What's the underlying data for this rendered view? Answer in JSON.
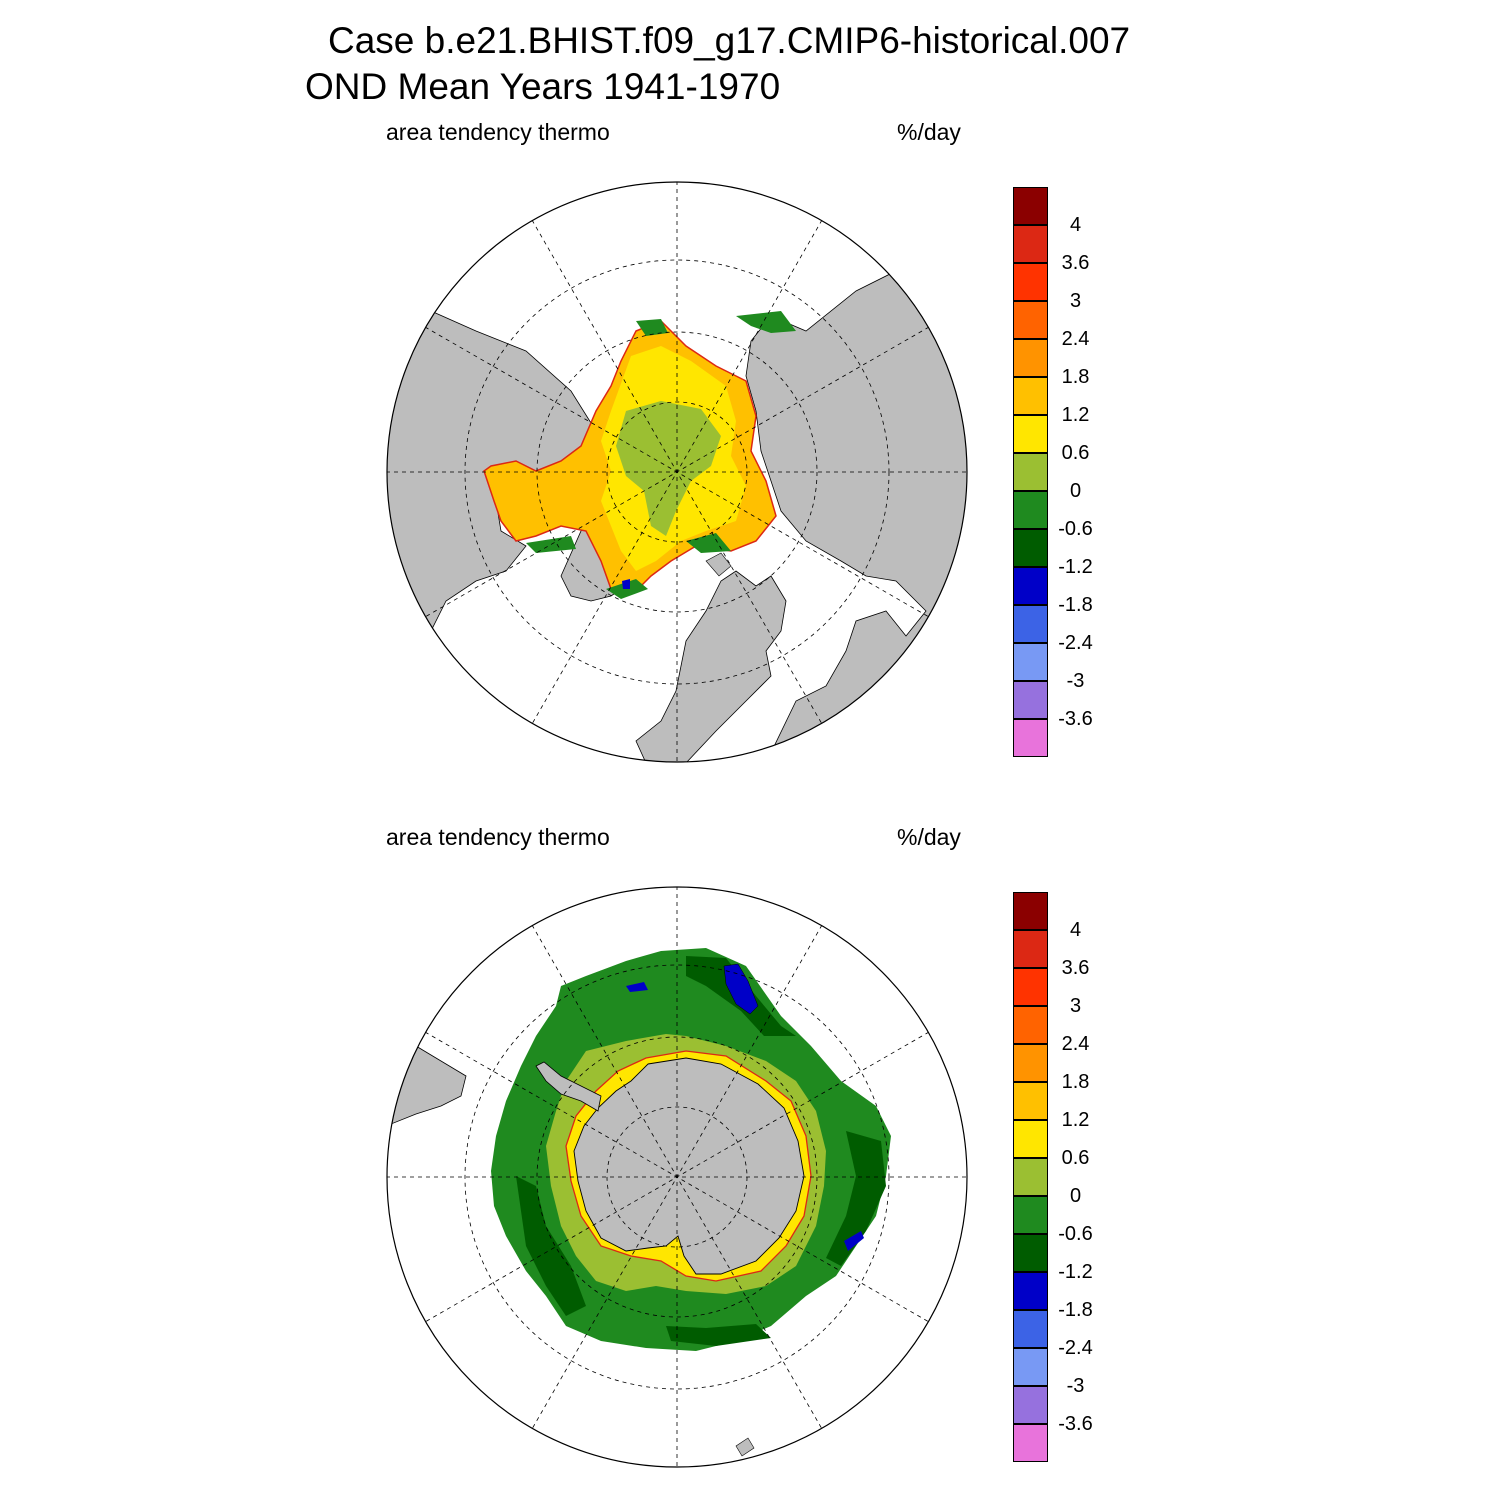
{
  "title": {
    "line1": "Case b.e21.BHIST.f09_g17.CMIP6-historical.007",
    "line2": "OND Mean   Years 1941-1970"
  },
  "panels": [
    {
      "hemisphere": "north",
      "field_label": "area tendency thermo",
      "units": "%/day"
    },
    {
      "hemisphere": "south",
      "field_label": "area tendency thermo",
      "units": "%/day"
    }
  ],
  "colorbar": {
    "colors": [
      "#e873db",
      "#9671de",
      "#7899f4",
      "#3c63e6",
      "#0000c8",
      "#005c00",
      "#1f8a1f",
      "#9bbf32",
      "#ffe600",
      "#ffc000",
      "#ff9300",
      "#ff6300",
      "#ff3300",
      "#dc2814",
      "#8b0000"
    ],
    "tick_labels": [
      "-3.6",
      "-3",
      "-2.4",
      "-1.8",
      "-1.2",
      "-0.6",
      "0",
      "0.6",
      "1.2",
      "1.8",
      "2.4",
      "3",
      "3.6",
      "4"
    ]
  },
  "map_colors": {
    "land": "#bdbdbd",
    "ocean_no_ice": "#ffffff",
    "outline": "#000000"
  }
}
